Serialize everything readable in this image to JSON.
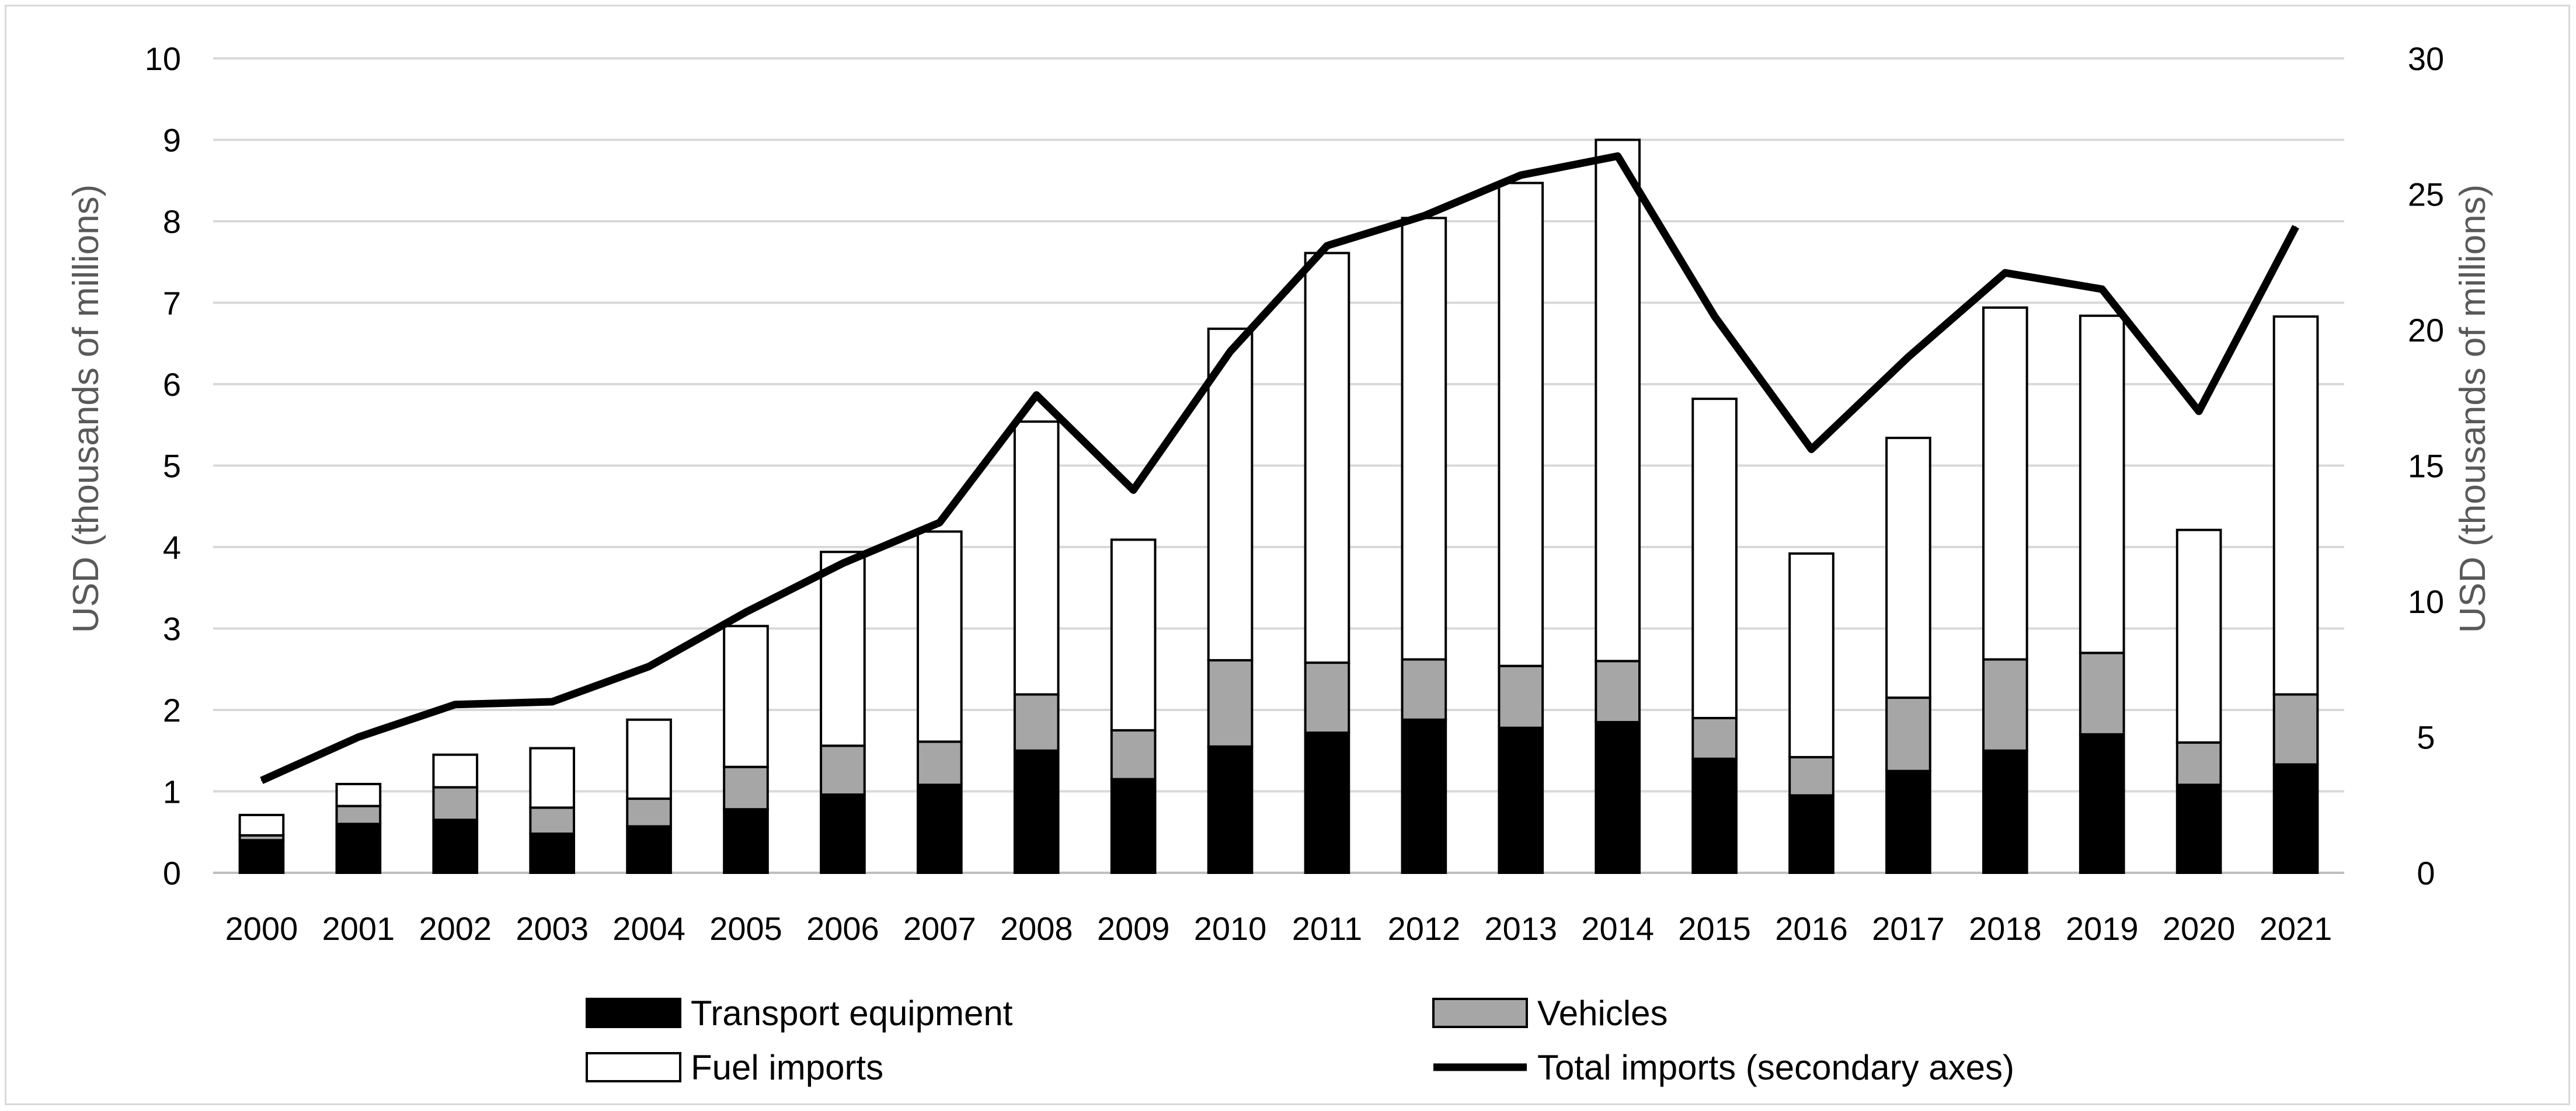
{
  "chart_data": {
    "type": "bar",
    "stacked": true,
    "title": "",
    "categories": [
      "2000",
      "2001",
      "2002",
      "2003",
      "2004",
      "2005",
      "2006",
      "2007",
      "2008",
      "2009",
      "2010",
      "2011",
      "2012",
      "2013",
      "2014",
      "2015",
      "2016",
      "2017",
      "2018",
      "2019",
      "2020",
      "2021"
    ],
    "series": [
      {
        "name": "Transport equipment",
        "axis": "left",
        "color": "#000000",
        "values": [
          0.4,
          0.6,
          0.65,
          0.48,
          0.57,
          0.78,
          0.96,
          1.08,
          1.5,
          1.15,
          1.55,
          1.72,
          1.88,
          1.78,
          1.85,
          1.4,
          0.95,
          1.25,
          1.5,
          1.7,
          1.08,
          1.33
        ]
      },
      {
        "name": "Vehicles",
        "axis": "left",
        "color": "#a6a6a6",
        "values": [
          0.06,
          0.22,
          0.4,
          0.32,
          0.34,
          0.52,
          0.6,
          0.53,
          0.69,
          0.6,
          1.06,
          0.86,
          0.74,
          0.76,
          0.75,
          0.5,
          0.47,
          0.9,
          1.12,
          1.0,
          0.52,
          0.86
        ]
      },
      {
        "name": "Fuel imports",
        "axis": "left",
        "color": "#ffffff",
        "values": [
          0.25,
          0.27,
          0.4,
          0.73,
          0.97,
          1.73,
          2.38,
          2.58,
          3.35,
          2.34,
          4.07,
          5.03,
          5.42,
          5.93,
          6.4,
          3.92,
          2.5,
          3.19,
          4.32,
          4.14,
          2.61,
          4.64
        ]
      },
      {
        "name": "Total imports (secondary axes)",
        "type": "line",
        "axis": "right",
        "color": "#000000",
        "values": [
          3.4,
          5.0,
          6.2,
          6.3,
          7.6,
          9.6,
          11.4,
          12.9,
          17.6,
          14.1,
          19.2,
          23.1,
          24.2,
          25.7,
          26.4,
          20.5,
          15.6,
          19.0,
          22.1,
          21.5,
          17.0,
          23.8
        ]
      }
    ],
    "y_left": {
      "label": "USD (thousands of millions)",
      "min": 0,
      "max": 10,
      "ticks": [
        "0",
        "1",
        "2",
        "3",
        "4",
        "5",
        "6",
        "7",
        "8",
        "9",
        "10"
      ]
    },
    "y_right": {
      "label": "USD (thousands of millions)",
      "min": 0,
      "max": 30,
      "ticks": [
        "0",
        "5",
        "10",
        "15",
        "20",
        "25",
        "30"
      ]
    },
    "grid": true,
    "legend": {
      "position": "bottom",
      "items": [
        {
          "label": "Transport equipment",
          "kind": "box",
          "color": "#000000"
        },
        {
          "label": "Vehicles",
          "kind": "box",
          "color": "#a6a6a6"
        },
        {
          "label": "Fuel imports",
          "kind": "box",
          "color": "#ffffff"
        },
        {
          "label": "Total imports (secondary axes)",
          "kind": "line",
          "color": "#000000"
        }
      ]
    }
  }
}
